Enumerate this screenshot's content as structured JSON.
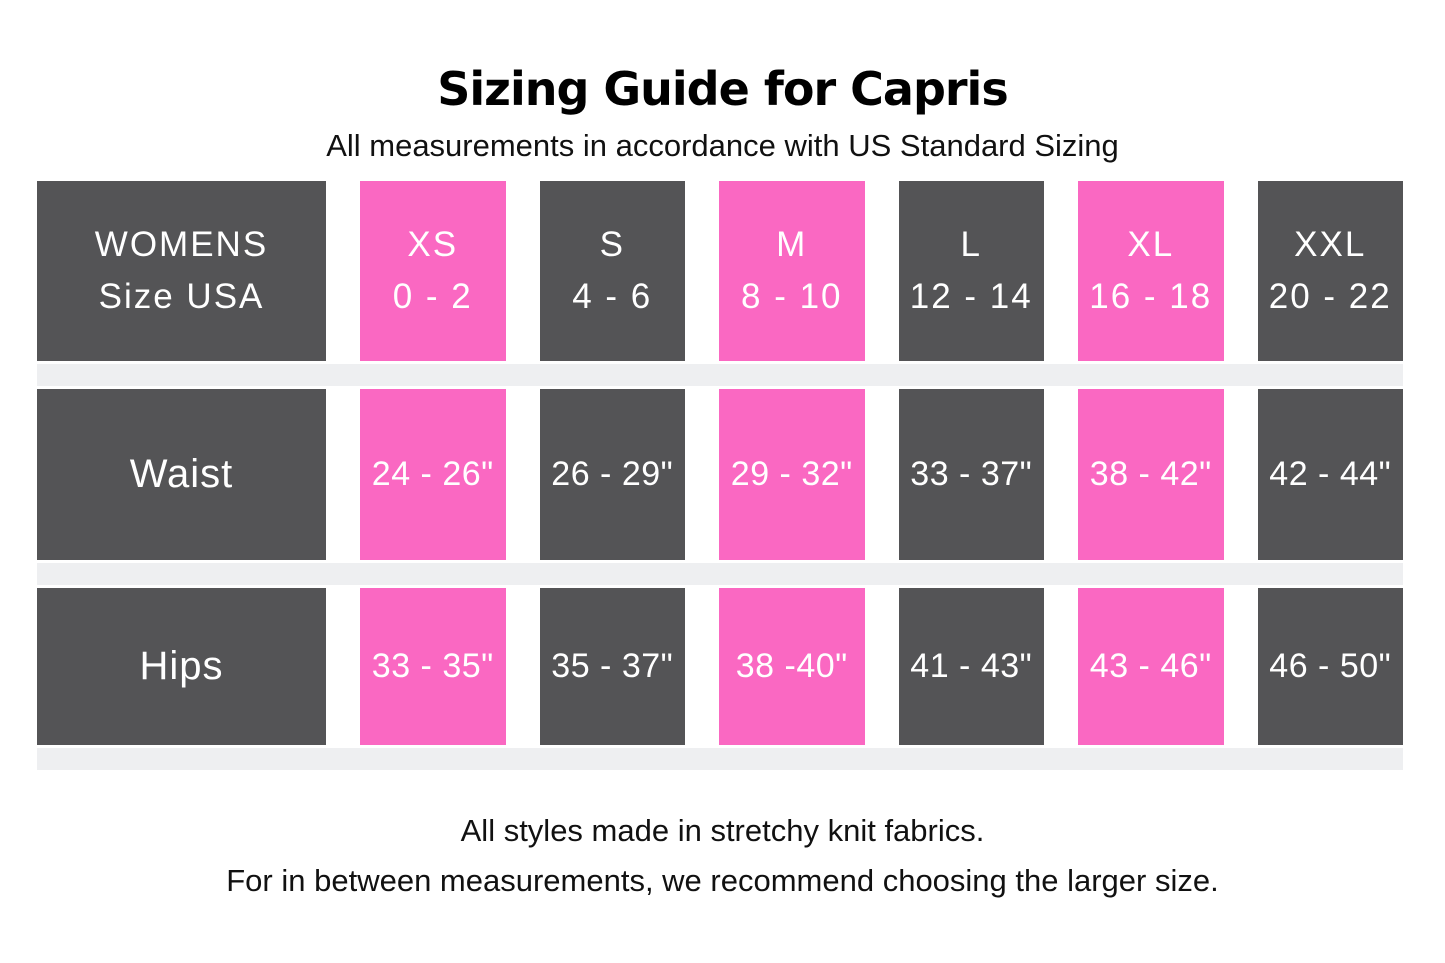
{
  "title": "Sizing Guide for Capris",
  "subtitle": "All measurements in accordance with US Standard Sizing",
  "colors": {
    "dark_cell": "#545456",
    "highlight_cell": "#FA68C2",
    "separator": "#EEEFF1",
    "cell_text": "#FFFFFF",
    "heading_text": "#000000",
    "background": "#FFFFFF"
  },
  "chart_data": {
    "type": "table",
    "title": "Sizing Guide for Capris",
    "subtitle": "All measurements in accordance with US Standard Sizing",
    "corner_header": {
      "line1": "WOMENS",
      "line2": "Size USA"
    },
    "size_columns": [
      {
        "size": "XS",
        "us_range": "0 - 2",
        "highlighted": true
      },
      {
        "size": "S",
        "us_range": "4 - 6",
        "highlighted": false
      },
      {
        "size": "M",
        "us_range": "8 - 10",
        "highlighted": true
      },
      {
        "size": "L",
        "us_range": "12 - 14",
        "highlighted": false
      },
      {
        "size": "XL",
        "us_range": "16 - 18",
        "highlighted": true
      },
      {
        "size": "XXL",
        "us_range": "20 - 22",
        "highlighted": false
      }
    ],
    "rows": [
      {
        "label": "Waist",
        "values": [
          "24 - 26\"",
          "26 - 29\"",
          "29 - 32\"",
          "33 - 37\"",
          "38 - 42\"",
          "42 - 44\""
        ]
      },
      {
        "label": "Hips",
        "values": [
          "33 - 35\"",
          "35 - 37\"",
          "38 -40\"",
          "41 - 43\"",
          "43 - 46\"",
          "46 - 50\""
        ]
      }
    ],
    "notes": [
      "All styles made in stretchy knit fabrics.",
      "For in between measurements, we recommend choosing the larger size."
    ]
  }
}
